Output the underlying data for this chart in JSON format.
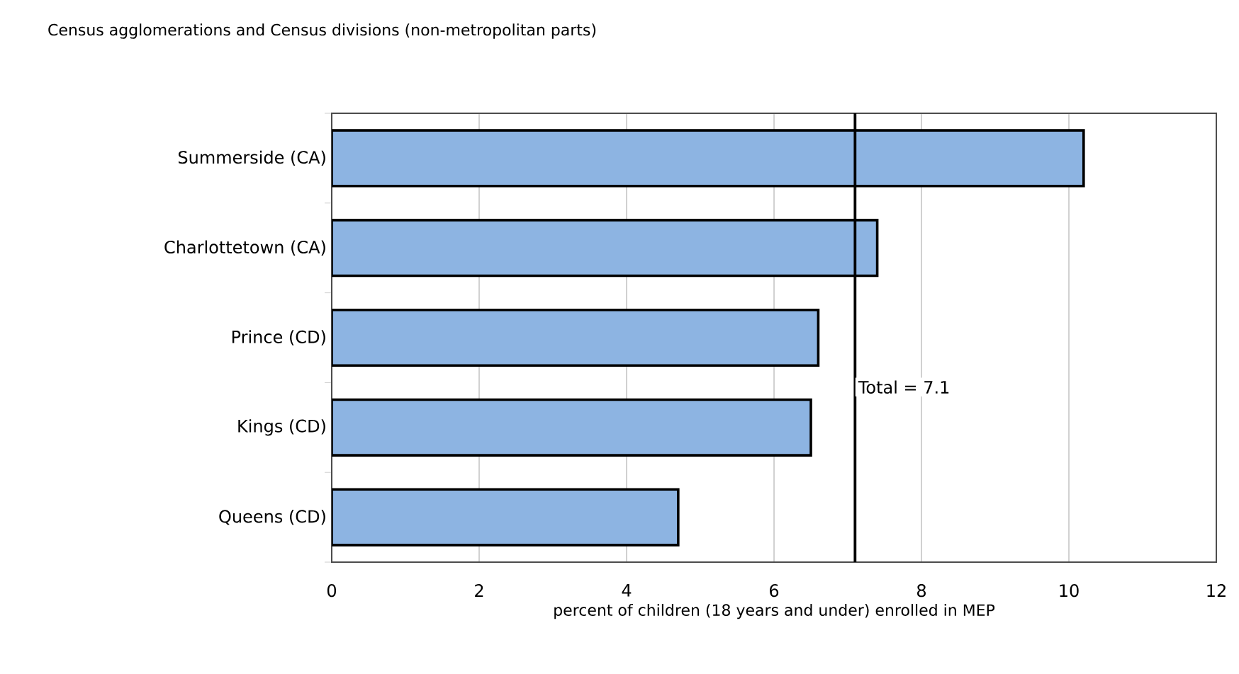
{
  "chart_data": {
    "type": "bar",
    "orientation": "horizontal",
    "title": "Census agglomerations and Census divisions (non-metropolitan parts)",
    "xlabel": "percent of children (18 years and under) enrolled in MEP",
    "categories": [
      "Summerside (CA)",
      "Charlottetown (CA)",
      "Prince (CD)",
      "Kings (CD)",
      "Queens (CD)"
    ],
    "values": [
      10.2,
      7.4,
      6.6,
      6.5,
      4.7
    ],
    "color": "#8db4e2",
    "xlim": [
      0,
      12
    ],
    "xticks": [
      0,
      2,
      4,
      6,
      8,
      10,
      12
    ],
    "grid": "x",
    "ref_lines": [
      {
        "axis": "x",
        "value": 7.1,
        "label": "Total = 7.1",
        "color": "#000000"
      }
    ]
  }
}
